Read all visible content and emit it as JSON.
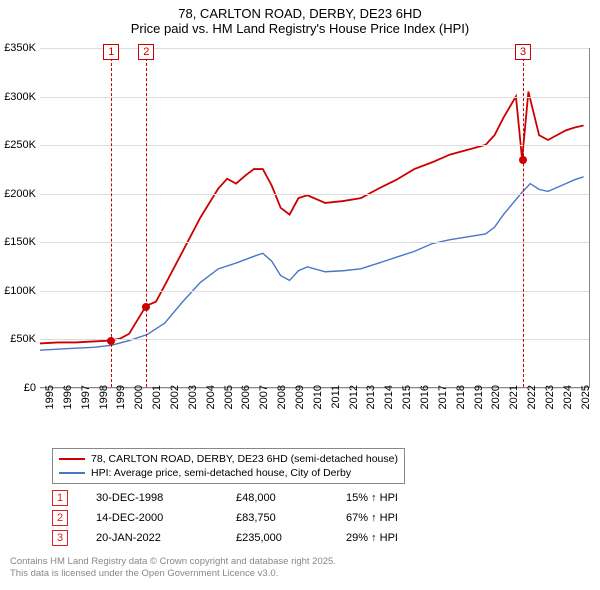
{
  "title": {
    "line1": "78, CARLTON ROAD, DERBY, DE23 6HD",
    "line2": "Price paid vs. HM Land Registry's House Price Index (HPI)"
  },
  "chart": {
    "type": "line",
    "background_color": "#ffffff",
    "grid_color": "#dddddd",
    "axis_color": "#888888",
    "x": {
      "min": 1995,
      "max": 2025.8,
      "ticks": [
        1995,
        1996,
        1997,
        1998,
        1999,
        2000,
        2001,
        2002,
        2003,
        2004,
        2005,
        2006,
        2007,
        2008,
        2009,
        2010,
        2011,
        2012,
        2013,
        2014,
        2015,
        2016,
        2017,
        2018,
        2019,
        2020,
        2021,
        2022,
        2023,
        2024,
        2025
      ]
    },
    "y": {
      "min": 0,
      "max": 350,
      "tick_step": 50,
      "tick_labels": [
        "£0",
        "£50K",
        "£100K",
        "£150K",
        "£200K",
        "£250K",
        "£300K",
        "£350K"
      ]
    },
    "series": [
      {
        "name": "78, CARLTON ROAD, DERBY, DE23 6HD (semi-detached house)",
        "color": "#cc0000",
        "width": 1.8,
        "points": [
          [
            1995,
            45
          ],
          [
            1996,
            46
          ],
          [
            1997,
            46
          ],
          [
            1998,
            47
          ],
          [
            1998.99,
            48
          ],
          [
            1999.5,
            50
          ],
          [
            2000,
            55
          ],
          [
            2000.95,
            83.75
          ],
          [
            2001.5,
            88
          ],
          [
            2002,
            105
          ],
          [
            2003,
            140
          ],
          [
            2004,
            175
          ],
          [
            2005,
            205
          ],
          [
            2005.5,
            215
          ],
          [
            2006,
            210
          ],
          [
            2006.5,
            218
          ],
          [
            2007,
            225
          ],
          [
            2007.5,
            225
          ],
          [
            2008,
            208
          ],
          [
            2008.5,
            185
          ],
          [
            2009,
            178
          ],
          [
            2009.5,
            195
          ],
          [
            2010,
            198
          ],
          [
            2011,
            190
          ],
          [
            2012,
            192
          ],
          [
            2013,
            195
          ],
          [
            2014,
            205
          ],
          [
            2015,
            214
          ],
          [
            2016,
            225
          ],
          [
            2017,
            232
          ],
          [
            2018,
            240
          ],
          [
            2019,
            245
          ],
          [
            2020,
            250
          ],
          [
            2020.5,
            260
          ],
          [
            2021,
            278
          ],
          [
            2021.7,
            300
          ],
          [
            2022.05,
            235
          ],
          [
            2022.4,
            305
          ],
          [
            2023,
            260
          ],
          [
            2023.5,
            255
          ],
          [
            2024,
            260
          ],
          [
            2024.5,
            265
          ],
          [
            2025,
            268
          ],
          [
            2025.5,
            270
          ]
        ]
      },
      {
        "name": "HPI: Average price, semi-detached house, City of Derby",
        "color": "#4a76c7",
        "width": 1.4,
        "points": [
          [
            1995,
            38
          ],
          [
            1996,
            39
          ],
          [
            1997,
            40
          ],
          [
            1998,
            41
          ],
          [
            1999,
            43
          ],
          [
            2000,
            48
          ],
          [
            2001,
            54
          ],
          [
            2002,
            66
          ],
          [
            2003,
            88
          ],
          [
            2004,
            108
          ],
          [
            2005,
            122
          ],
          [
            2006,
            128
          ],
          [
            2007,
            135
          ],
          [
            2007.5,
            138
          ],
          [
            2008,
            130
          ],
          [
            2008.5,
            115
          ],
          [
            2009,
            110
          ],
          [
            2009.5,
            120
          ],
          [
            2010,
            124
          ],
          [
            2011,
            119
          ],
          [
            2012,
            120
          ],
          [
            2013,
            122
          ],
          [
            2014,
            128
          ],
          [
            2015,
            134
          ],
          [
            2016,
            140
          ],
          [
            2017,
            148
          ],
          [
            2018,
            152
          ],
          [
            2019,
            155
          ],
          [
            2020,
            158
          ],
          [
            2020.5,
            165
          ],
          [
            2021,
            178
          ],
          [
            2022,
            200
          ],
          [
            2022.5,
            210
          ],
          [
            2023,
            204
          ],
          [
            2023.5,
            202
          ],
          [
            2024,
            206
          ],
          [
            2024.5,
            210
          ],
          [
            2025,
            214
          ],
          [
            2025.5,
            217
          ]
        ]
      }
    ],
    "markers": [
      {
        "n": "1",
        "x": 1998.99,
        "y": 48,
        "color": "#cc0000"
      },
      {
        "n": "2",
        "x": 2000.95,
        "y": 83.75,
        "color": "#cc0000"
      },
      {
        "n": "3",
        "x": 2022.05,
        "y": 235,
        "color": "#cc0000"
      }
    ]
  },
  "transactions": [
    {
      "n": "1",
      "date": "30-DEC-1998",
      "price": "£48,000",
      "pct": "15% ↑ HPI"
    },
    {
      "n": "2",
      "date": "14-DEC-2000",
      "price": "£83,750",
      "pct": "67% ↑ HPI"
    },
    {
      "n": "3",
      "date": "20-JAN-2022",
      "price": "£235,000",
      "pct": "29% ↑ HPI"
    }
  ],
  "footer": {
    "line1": "Contains HM Land Registry data © Crown copyright and database right 2025.",
    "line2": "This data is licensed under the Open Government Licence v3.0."
  }
}
